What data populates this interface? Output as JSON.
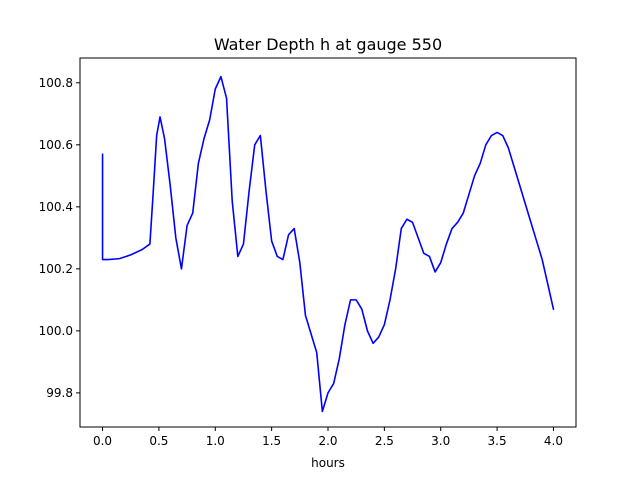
{
  "chart_data": {
    "type": "line",
    "title": "Water Depth h at gauge 550",
    "xlabel": "hours",
    "ylabel": "",
    "xlim": [
      -0.2,
      4.2
    ],
    "ylim": [
      99.69,
      100.88
    ],
    "xticks": [
      0.0,
      0.5,
      1.0,
      1.5,
      2.0,
      2.5,
      3.0,
      3.5,
      4.0
    ],
    "xtick_labels": [
      "0.0",
      "0.5",
      "1.0",
      "1.5",
      "2.0",
      "2.5",
      "3.0",
      "3.5",
      "4.0"
    ],
    "yticks": [
      99.8,
      100.0,
      100.2,
      100.4,
      100.6,
      100.8
    ],
    "ytick_labels": [
      "99.8",
      "100.0",
      "100.2",
      "100.4",
      "100.6",
      "100.8"
    ],
    "grid": false,
    "series": [
      {
        "color": "#0000ff",
        "x": [
          0.0,
          0.0,
          0.05,
          0.15,
          0.25,
          0.35,
          0.42,
          0.45,
          0.48,
          0.51,
          0.55,
          0.6,
          0.65,
          0.7,
          0.75,
          0.8,
          0.85,
          0.9,
          0.95,
          1.0,
          1.05,
          1.1,
          1.15,
          1.2,
          1.25,
          1.3,
          1.35,
          1.4,
          1.45,
          1.5,
          1.55,
          1.6,
          1.65,
          1.7,
          1.75,
          1.8,
          1.85,
          1.9,
          1.95,
          2.0,
          2.05,
          2.1,
          2.15,
          2.2,
          2.25,
          2.3,
          2.35,
          2.4,
          2.45,
          2.5,
          2.55,
          2.6,
          2.65,
          2.7,
          2.75,
          2.8,
          2.85,
          2.9,
          2.95,
          3.0,
          3.05,
          3.1,
          3.15,
          3.2,
          3.25,
          3.3,
          3.35,
          3.4,
          3.45,
          3.5,
          3.55,
          3.6,
          3.65,
          3.7,
          3.75,
          3.8,
          3.85,
          3.9,
          3.95,
          4.0
        ],
        "y": [
          100.57,
          100.23,
          100.23,
          100.233,
          100.245,
          100.262,
          100.28,
          100.45,
          100.63,
          100.69,
          100.62,
          100.47,
          100.3,
          100.2,
          100.34,
          100.38,
          100.54,
          100.62,
          100.68,
          100.78,
          100.82,
          100.75,
          100.42,
          100.24,
          100.28,
          100.45,
          100.6,
          100.63,
          100.45,
          100.29,
          100.24,
          100.23,
          100.31,
          100.33,
          100.22,
          100.05,
          99.99,
          99.93,
          99.74,
          99.8,
          99.83,
          99.91,
          100.02,
          100.1,
          100.1,
          100.07,
          100.0,
          99.96,
          99.98,
          100.02,
          100.1,
          100.2,
          100.33,
          100.36,
          100.35,
          100.3,
          100.25,
          100.24,
          100.19,
          100.22,
          100.28,
          100.33,
          100.35,
          100.38,
          100.44,
          100.5,
          100.54,
          100.6,
          100.63,
          100.64,
          100.63,
          100.59,
          100.53,
          100.47,
          100.41,
          100.35,
          100.29,
          100.23,
          100.15,
          100.07
        ]
      }
    ]
  }
}
